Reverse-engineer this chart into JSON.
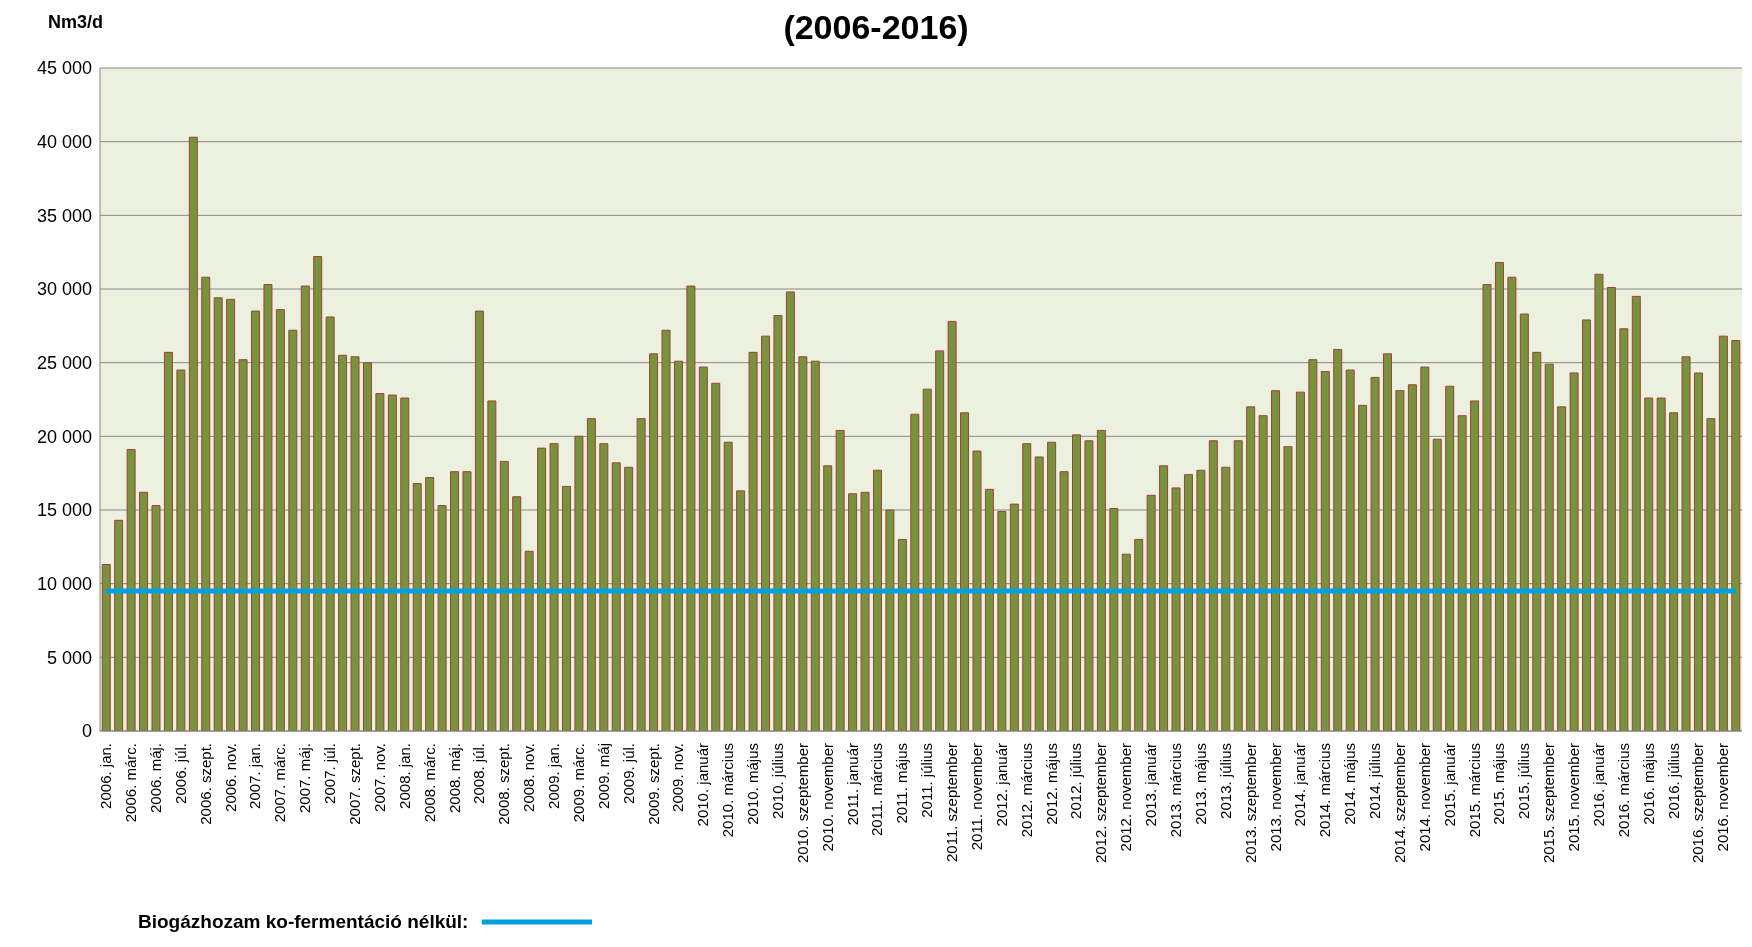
{
  "chart_data": {
    "type": "bar",
    "title": "(2006-2016)",
    "ylabel": "Nm3/d",
    "categories": [
      "2006. jan.",
      null,
      "2006. márc.",
      null,
      "2006. máj.",
      null,
      "2006. júl.",
      null,
      "2006. szept.",
      null,
      "2006. nov.",
      null,
      "2007. jan.",
      null,
      "2007. márc.",
      null,
      "2007. máj.",
      null,
      "2007. júl.",
      null,
      "2007. szept.",
      null,
      "2007. nov.",
      null,
      "2008. jan.",
      null,
      "2008. márc.",
      null,
      "2008. máj.",
      null,
      "2008. júl.",
      null,
      "2008. szept.",
      null,
      "2008. nov.",
      null,
      "2009. jan.",
      null,
      "2009. márc.",
      null,
      "2009. máj",
      null,
      "2009. júl.",
      null,
      "2009. szept.",
      null,
      "2009. nov.",
      null,
      "2010. január",
      null,
      "2010. március",
      null,
      "2010. május",
      null,
      "2010. július",
      null,
      "2010. szeptember",
      null,
      "2010. november",
      null,
      "2011. január",
      null,
      "2011. március",
      null,
      "2011. május",
      null,
      "2011. július",
      null,
      "2011. szeptember",
      null,
      "2011. november",
      null,
      "2012. január",
      null,
      "2012. március",
      null,
      "2012. május",
      null,
      "2012. július",
      null,
      "2012. szeptember",
      null,
      "2012. november",
      null,
      "2013. január",
      null,
      "2013. március",
      null,
      "2013. május",
      null,
      "2013. július",
      null,
      "2013. szeptember",
      null,
      "2013. november",
      null,
      "2014. január",
      null,
      "2014. március",
      null,
      "2014. május",
      null,
      "2014. július",
      null,
      "2014. szeptember",
      null,
      "2014. november",
      null,
      "2015. január",
      null,
      "2015. március",
      null,
      "2015. május",
      null,
      "2015. július",
      null,
      "2015. szeptember",
      null,
      "2015. november",
      null,
      "2016. január",
      null,
      "2016. március",
      null,
      "2016. május",
      null,
      "2016. július",
      null,
      "2016. szeptember",
      null,
      "2016. november",
      null
    ],
    "series": [
      {
        "color": "#77933c",
        "values": [
          11300,
          14300,
          19100,
          16200,
          15300,
          25700,
          24500,
          40300,
          30800,
          29400,
          29300,
          25200,
          28500,
          30300,
          28600,
          27200,
          30200,
          32200,
          28100,
          25500,
          25400,
          25000,
          22900,
          22800,
          22600,
          16800,
          17200,
          15300,
          17600,
          17600,
          28500,
          22400,
          18300,
          15900,
          12200,
          19200,
          19500,
          16600,
          20000,
          21200,
          19500,
          18200,
          17900,
          21200,
          25600,
          27200,
          25100,
          30200,
          24700,
          23600,
          19600,
          16300,
          25700,
          26800,
          28200,
          29800,
          25400,
          25100,
          18000,
          20400,
          16100,
          16200,
          17700,
          15000,
          13000,
          21500,
          23200,
          25800,
          27800,
          21600,
          19000,
          16400,
          14900,
          15400,
          19500,
          18600,
          19600,
          17600,
          20100,
          19700,
          20400,
          15100,
          12000,
          13000,
          16000,
          18000,
          16500,
          17400,
          17700,
          19700,
          17900,
          19700,
          22000,
          21400,
          23100,
          19300,
          23000,
          25200,
          24400,
          25900,
          24500,
          22100,
          24000,
          25600,
          23100,
          23500,
          24700,
          19800,
          23400,
          21400,
          22400,
          30300,
          31800,
          30800,
          28300,
          25700,
          24900,
          22000,
          24300,
          27900,
          31000,
          30100,
          27300,
          29500,
          22600,
          22600,
          21600,
          25400,
          24300,
          21200,
          26800,
          26500
        ]
      },
      {
        "type": "line",
        "name": "Biogázhozam ko-fermentáció nélkül:",
        "color": "#00a0e0",
        "values": [
          9500,
          9500,
          9500,
          9500,
          9500,
          9500,
          9500,
          9500,
          9500,
          9500,
          9500,
          9500,
          9500,
          9500,
          9500,
          9500,
          9500,
          9500,
          9500,
          9500,
          9500,
          9500,
          9500,
          9500,
          9500,
          9500,
          9500,
          9500,
          9500,
          9500,
          9500,
          9500,
          9500,
          9500,
          9500,
          9500,
          9500,
          9500,
          9500,
          9500,
          9500,
          9500,
          9500,
          9500,
          9500,
          9500,
          9500,
          9500,
          9500,
          9500,
          9500,
          9500,
          9500,
          9500,
          9500,
          9500,
          9500,
          9500,
          9500,
          9500,
          9500,
          9500,
          9500,
          9500,
          9500,
          9500,
          9500,
          9500,
          9500,
          9500,
          9500,
          9500,
          9500,
          9500,
          9500,
          9500,
          9500,
          9500,
          9500,
          9500,
          9500,
          9500,
          9500,
          9500,
          9500,
          9500,
          9500,
          9500,
          9500,
          9500,
          9500,
          9500,
          9500,
          9500,
          9500,
          9500,
          9500,
          9500,
          9500,
          9500,
          9500,
          9500,
          9500,
          9500,
          9500,
          9500,
          9500,
          9500,
          9500,
          9500,
          9500,
          9500,
          9500,
          9500,
          9500,
          9500,
          9500,
          9500,
          9500,
          9500,
          9500,
          9500,
          9500,
          9500,
          9500,
          9500,
          9500,
          9500,
          9500,
          9500,
          9500,
          9500
        ]
      }
    ],
    "ylim": [
      0,
      45000
    ],
    "yticks": [
      0,
      {
        "value": 5000,
        "label": "5 000"
      },
      {
        "value": 10000,
        "label": "10 000"
      },
      {
        "value": 15000,
        "label": "15 000"
      },
      {
        "value": 20000,
        "label": "20 000"
      },
      {
        "value": 25000,
        "label": "25 000"
      },
      {
        "value": 30000,
        "label": "30 000"
      },
      {
        "value": 35000,
        "label": "35 000"
      },
      {
        "value": 40000,
        "label": "40 000"
      },
      {
        "value": 45000,
        "label": "45 000"
      }
    ],
    "grid": "y",
    "marker": "none",
    "legend": "bottom left"
  }
}
